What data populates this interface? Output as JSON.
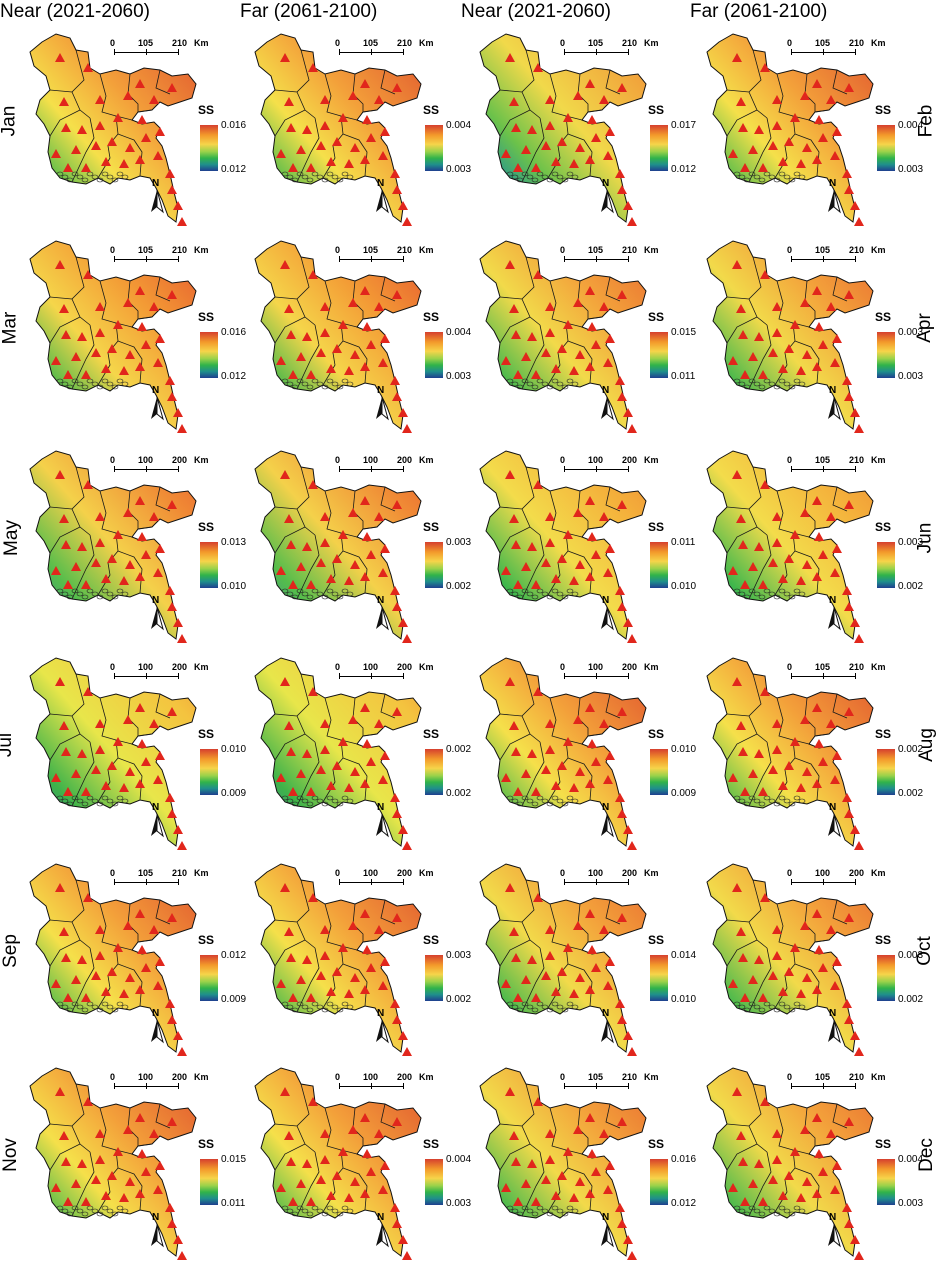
{
  "columns": [
    {
      "label": "Near (2021-2060)"
    },
    {
      "label": "Far (2061-2100)"
    },
    {
      "label": "Near (2021-2060)"
    },
    {
      "label": "Far (2061-2100)"
    }
  ],
  "legend_title": "SS",
  "scale_unit": "Km",
  "north_label": "N",
  "rows": [
    {
      "left_month": "Jan",
      "right_month": "Feb",
      "panels": [
        {
          "max": "0.016",
          "min": "0.012",
          "scale": [
            "0",
            "105",
            "210"
          ]
        },
        {
          "max": "0.004",
          "min": "0.003",
          "scale": [
            "0",
            "105",
            "210"
          ]
        },
        {
          "max": "0.017",
          "min": "0.012",
          "scale": [
            "0",
            "105",
            "210"
          ]
        },
        {
          "max": "0.004",
          "min": "0.003",
          "scale": [
            "0",
            "105",
            "210"
          ]
        }
      ]
    },
    {
      "left_month": "Mar",
      "right_month": "Apr",
      "panels": [
        {
          "max": "0.016",
          "min": "0.012",
          "scale": [
            "0",
            "105",
            "210"
          ]
        },
        {
          "max": "0.004",
          "min": "0.003",
          "scale": [
            "0",
            "105",
            "210"
          ]
        },
        {
          "max": "0.015",
          "min": "0.011",
          "scale": [
            "0",
            "105",
            "210"
          ]
        },
        {
          "max": "0.003",
          "min": "0.003",
          "scale": [
            "0",
            "105",
            "210"
          ]
        }
      ]
    },
    {
      "left_month": "May",
      "right_month": "Jun",
      "panels": [
        {
          "max": "0.013",
          "min": "0.010",
          "scale": [
            "0",
            "100",
            "200"
          ]
        },
        {
          "max": "0.003",
          "min": "0.002",
          "scale": [
            "0",
            "100",
            "200"
          ]
        },
        {
          "max": "0.011",
          "min": "0.010",
          "scale": [
            "0",
            "100",
            "200"
          ]
        },
        {
          "max": "0.003",
          "min": "0.002",
          "scale": [
            "0",
            "105",
            "210"
          ]
        }
      ]
    },
    {
      "left_month": "Jul",
      "right_month": "Aug",
      "panels": [
        {
          "max": "0.010",
          "min": "0.009",
          "scale": [
            "0",
            "100",
            "200"
          ]
        },
        {
          "max": "0.002",
          "min": "0.002",
          "scale": [
            "0",
            "100",
            "200"
          ]
        },
        {
          "max": "0.010",
          "min": "0.009",
          "scale": [
            "0",
            "100",
            "200"
          ]
        },
        {
          "max": "0.002",
          "min": "0.002",
          "scale": [
            "0",
            "105",
            "210"
          ]
        }
      ]
    },
    {
      "left_month": "Sep",
      "right_month": "Oct",
      "panels": [
        {
          "max": "0.012",
          "min": "0.009",
          "scale": [
            "0",
            "105",
            "210"
          ]
        },
        {
          "max": "0.003",
          "min": "0.002",
          "scale": [
            "0",
            "100",
            "200"
          ]
        },
        {
          "max": "0.014",
          "min": "0.010",
          "scale": [
            "0",
            "100",
            "200"
          ]
        },
        {
          "max": "0.003",
          "min": "0.002",
          "scale": [
            "0",
            "100",
            "200"
          ]
        }
      ]
    },
    {
      "left_month": "Nov",
      "right_month": "Dec",
      "panels": [
        {
          "max": "0.015",
          "min": "0.011",
          "scale": [
            "0",
            "100",
            "200"
          ]
        },
        {
          "max": "0.004",
          "min": "0.003",
          "scale": [
            "0",
            "100",
            "200"
          ]
        },
        {
          "max": "0.016",
          "min": "0.012",
          "scale": [
            "0",
            "105",
            "210"
          ]
        },
        {
          "max": "0.004",
          "min": "0.003",
          "scale": [
            "0",
            "105",
            "210"
          ]
        }
      ]
    }
  ]
}
